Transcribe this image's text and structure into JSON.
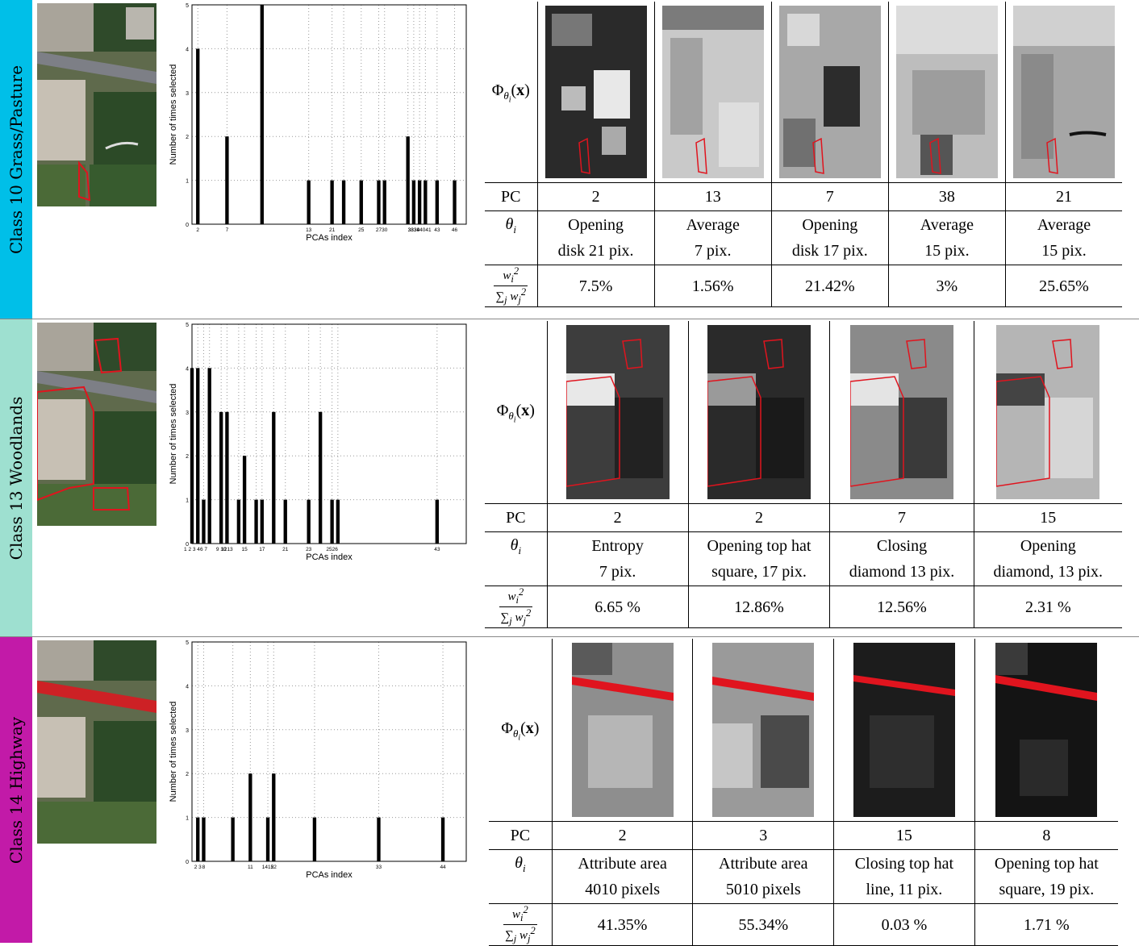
{
  "sections": [
    {
      "class_label": "Class 10 Grass/Pasture",
      "color": "#00bfe8",
      "chart": {
        "chart_data": {
          "type": "bar",
          "xlabel": "PCAs index",
          "ylabel": "Number of times selected",
          "ylim": [
            0,
            5
          ],
          "xlim": [
            1,
            48
          ],
          "yticks": [
            0,
            1,
            2,
            3,
            4,
            5
          ],
          "x": [
            2,
            7,
            13,
            21,
            25,
            27,
            30,
            33,
            34,
            38,
            39,
            40,
            41,
            43,
            46
          ],
          "values": [
            4,
            2,
            5,
            1,
            1,
            1,
            1,
            1,
            1,
            2,
            1,
            1,
            1,
            1,
            1
          ],
          "xtick_labels": [
            "2",
            "7",
            "13",
            "21",
            "25",
            "27",
            "30",
            "3334",
            "38394041",
            "43",
            "46"
          ]
        }
      },
      "table": {
        "phi_label": "Φ",
        "pc_label": "PC",
        "theta_label": "θ",
        "pc": [
          "2",
          "13",
          "7",
          "38",
          "21"
        ],
        "theta_line1": [
          "Opening",
          "Average",
          "Opening",
          "Average",
          "Average"
        ],
        "theta_line2": [
          "disk 21 pix.",
          "7 pix.",
          "disk 17 pix.",
          "15 pix.",
          "15 pix."
        ],
        "weights": [
          "7.5%",
          "1.56%",
          "21.42%",
          "3%",
          "25.65%"
        ]
      }
    },
    {
      "class_label": "Class 13 Woodlands",
      "color": "#9ee0d0",
      "chart": {
        "chart_data": {
          "type": "bar",
          "xlabel": "PCAs index",
          "ylabel": "Number of times selected",
          "ylim": [
            0,
            5
          ],
          "xlim": [
            1,
            48
          ],
          "yticks": [
            0,
            1,
            2,
            3,
            4,
            5
          ],
          "x": [
            1,
            2,
            3,
            4,
            6,
            7,
            9,
            10,
            12,
            13,
            15,
            17,
            21,
            23,
            25,
            26,
            43
          ],
          "values": [
            4,
            4,
            1,
            4,
            3,
            3,
            1,
            2,
            1,
            1,
            3,
            1,
            1,
            3,
            1,
            1,
            1
          ],
          "xtick_labels": [
            "1 2 3 4",
            "6 7",
            "9 10",
            "1213",
            "15",
            "17",
            "21",
            "23",
            "2526",
            "43"
          ]
        }
      },
      "table": {
        "phi_label": "Φ",
        "pc_label": "PC",
        "theta_label": "θ",
        "pc": [
          "2",
          "2",
          "7",
          "15"
        ],
        "theta_line1": [
          "Entropy",
          "Opening top hat",
          "Closing",
          "Opening"
        ],
        "theta_line2": [
          "7 pix.",
          "square, 17 pix.",
          "diamond 13 pix.",
          "diamond, 13 pix."
        ],
        "weights": [
          "6.65 %",
          "12.86%",
          "12.56%",
          "2.31 %"
        ]
      }
    },
    {
      "class_label": "Class 14 Highway",
      "color": "#c21aa8",
      "chart": {
        "chart_data": {
          "type": "bar",
          "xlabel": "PCAs index",
          "ylabel": "Number of times selected",
          "ylim": [
            0,
            5
          ],
          "xlim": [
            1,
            48
          ],
          "yticks": [
            0,
            1,
            2,
            3,
            4,
            5
          ],
          "x": [
            2,
            3,
            8,
            11,
            14,
            15,
            22,
            33,
            44
          ],
          "values": [
            1,
            1,
            1,
            2,
            1,
            2,
            1,
            1,
            1
          ],
          "xtick_labels": [
            "2 3",
            "8",
            "11",
            "1415",
            "22",
            "33",
            "44"
          ]
        }
      },
      "table": {
        "phi_label": "Φ",
        "pc_label": "PC",
        "theta_label": "θ",
        "pc": [
          "2",
          "3",
          "15",
          "8"
        ],
        "theta_line1": [
          "Attribute area",
          "Attribute area",
          "Closing top hat",
          "Opening top hat"
        ],
        "theta_line2": [
          "4010 pixels",
          "5010 pixels",
          "line, 11 pix.",
          "square, 19 pix."
        ],
        "weights": [
          "41.35%",
          "55.34%",
          "0.03 %",
          "1.71 %"
        ]
      }
    }
  ]
}
